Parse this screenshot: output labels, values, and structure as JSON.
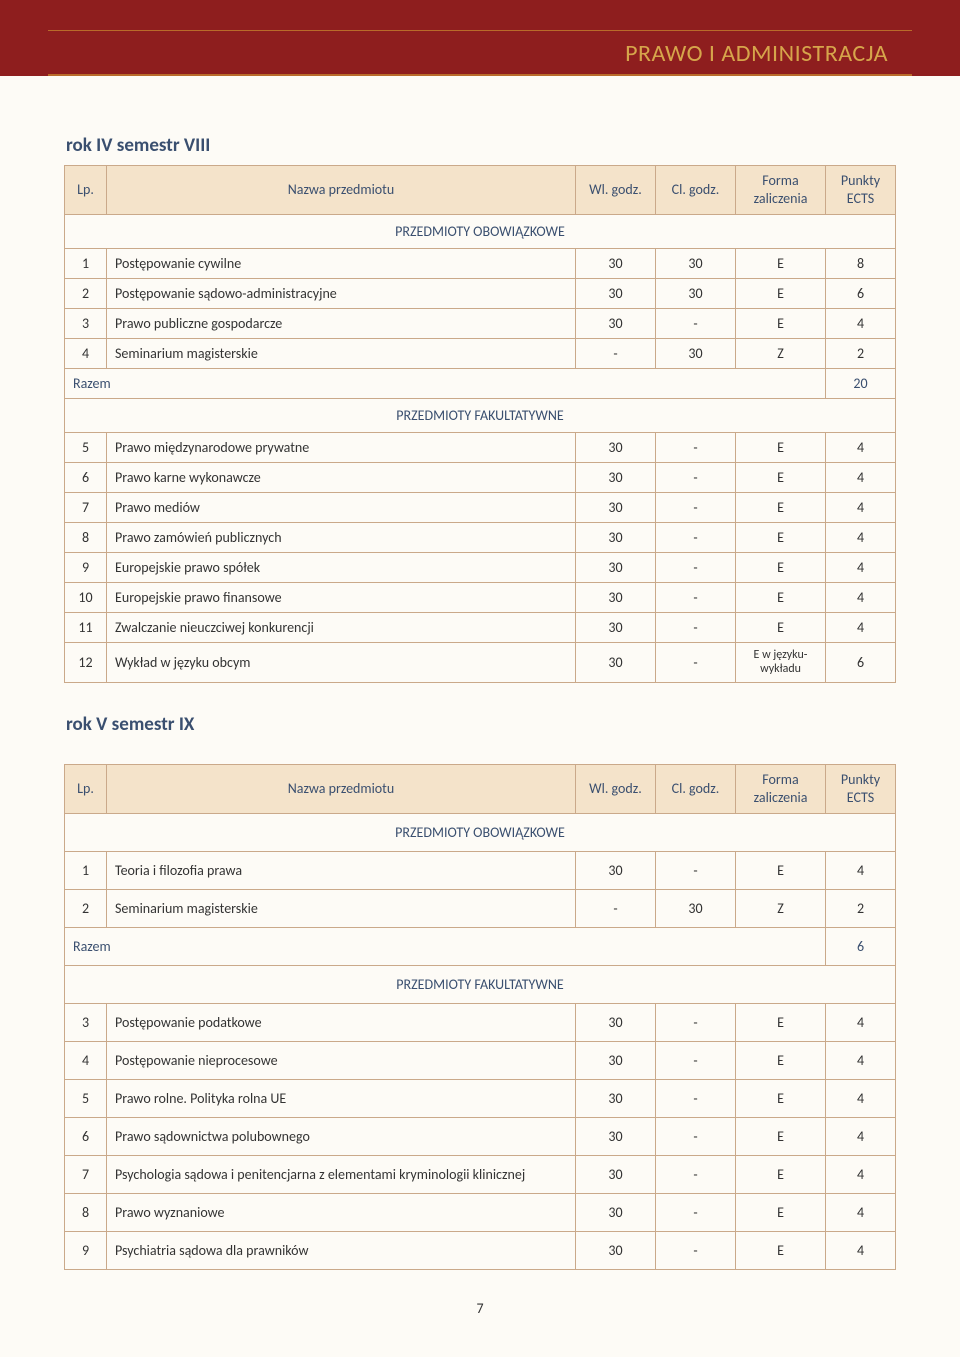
{
  "header": {
    "title": "PRAWO I ADMINISTRACJA"
  },
  "tableColumns": {
    "lp": "Lp.",
    "name": "Nazwa przedmiotu",
    "wl": "Wl. godz.",
    "cl": "Cl. godz.",
    "fz_line1": "Forma",
    "fz_line2": "zaliczenia",
    "pe_line1": "Punkty",
    "pe_line2": "ECTS"
  },
  "sectionLabels": {
    "obowiazkowe": "PRZEDMIOTY OBOWIĄZKOWE",
    "fakultatywne": "PRZEDMIOTY FAKULTATYWNE",
    "razem": "Razem"
  },
  "semester8": {
    "title": "rok IV semestr VIII",
    "obowiazkowe": [
      {
        "lp": "1",
        "name": "Postępowanie cywilne",
        "wl": "30",
        "cl": "30",
        "fz": "E",
        "pe": "8"
      },
      {
        "lp": "2",
        "name": "Postępowanie sądowo-administracyjne",
        "wl": "30",
        "cl": "30",
        "fz": "E",
        "pe": "6"
      },
      {
        "lp": "3",
        "name": "Prawo publiczne gospodarcze",
        "wl": "30",
        "cl": "-",
        "fz": "E",
        "pe": "4"
      },
      {
        "lp": "4",
        "name": "Seminarium magisterskie",
        "wl": "-",
        "cl": "30",
        "fz": "Z",
        "pe": "2"
      }
    ],
    "razemObowiazkowe": "20",
    "fakultatywne": [
      {
        "lp": "5",
        "name": "Prawo międzynarodowe prywatne",
        "wl": "30",
        "cl": "-",
        "fz": "E",
        "pe": "4"
      },
      {
        "lp": "6",
        "name": "Prawo karne wykonawcze",
        "wl": "30",
        "cl": "-",
        "fz": "E",
        "pe": "4"
      },
      {
        "lp": "7",
        "name": "Prawo mediów",
        "wl": "30",
        "cl": "-",
        "fz": "E",
        "pe": "4"
      },
      {
        "lp": "8",
        "name": "Prawo zamówień publicznych",
        "wl": "30",
        "cl": "-",
        "fz": "E",
        "pe": "4"
      },
      {
        "lp": "9",
        "name": "Europejskie prawo spółek",
        "wl": "30",
        "cl": "-",
        "fz": "E",
        "pe": "4"
      },
      {
        "lp": "10",
        "name": "Europejskie prawo finansowe",
        "wl": "30",
        "cl": "-",
        "fz": "E",
        "pe": "4"
      },
      {
        "lp": "11",
        "name": "Zwalczanie nieuczciwej konkurencji",
        "wl": "30",
        "cl": "-",
        "fz": "E",
        "pe": "4"
      },
      {
        "lp": "12",
        "name": "Wykład w języku obcym",
        "wl": "30",
        "cl": "-",
        "fz": "E w języku-\nwykładu",
        "pe": "6"
      }
    ]
  },
  "semester9": {
    "title": "rok V semestr IX",
    "obowiazkowe": [
      {
        "lp": "1",
        "name": "Teoria i filozofia prawa",
        "wl": "30",
        "cl": "-",
        "fz": "E",
        "pe": "4"
      },
      {
        "lp": "2",
        "name": "Seminarium magisterskie",
        "wl": "-",
        "cl": "30",
        "fz": "Z",
        "pe": "2"
      }
    ],
    "razemObowiazkowe": "6",
    "fakultatywne": [
      {
        "lp": "3",
        "name": "Postępowanie podatkowe",
        "wl": "30",
        "cl": "-",
        "fz": "E",
        "pe": "4"
      },
      {
        "lp": "4",
        "name": "Postępowanie nieprocesowe",
        "wl": "30",
        "cl": "-",
        "fz": "E",
        "pe": "4"
      },
      {
        "lp": "5",
        "name": "Prawo rolne. Polityka rolna UE",
        "wl": "30",
        "cl": "-",
        "fz": "E",
        "pe": "4"
      },
      {
        "lp": "6",
        "name": "Prawo sądownictwa polubownego",
        "wl": "30",
        "cl": "-",
        "fz": "E",
        "pe": "4"
      },
      {
        "lp": "7",
        "name": "Psychologia sądowa i penitencjarna z elementami kryminologii klinicznej",
        "wl": "30",
        "cl": "-",
        "fz": "E",
        "pe": "4"
      },
      {
        "lp": "8",
        "name": "Prawo wyznaniowe",
        "wl": "30",
        "cl": "-",
        "fz": "E",
        "pe": "4"
      },
      {
        "lp": "9",
        "name": "Psychiatria sądowa dla prawników",
        "wl": "30",
        "cl": "-",
        "fz": "E",
        "pe": "4"
      }
    ]
  },
  "pageNumber": "7",
  "colors": {
    "headerBg": "#8e1e1e",
    "headerText": "#d6a54b",
    "accent": "#3a4f6f",
    "tableHeaderBg": "#f4e3ca",
    "border": "#caa98a",
    "pageBg": "#fdfbf6"
  },
  "typography": {
    "baseFontSize": 14,
    "titleFontSize": 19,
    "headerFontSize": 24
  }
}
